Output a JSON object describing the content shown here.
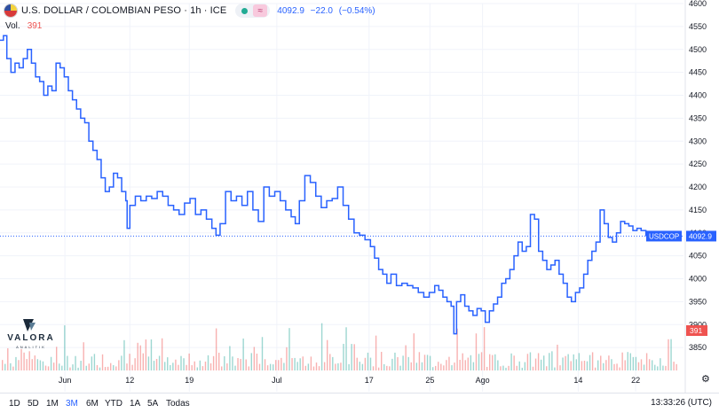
{
  "header": {
    "title": "U.S. DOLLAR / COLOMBIAN PESO · 1h · ICE",
    "last": "4092.9",
    "change": "−22.0",
    "change_pct": "(−0.54%)",
    "approx_symbol": "≈",
    "flag_icon": "colombia-flag-icon"
  },
  "volume": {
    "label": "Vol.",
    "value": "391"
  },
  "logo": {
    "word": "VALORA",
    "sub": "ANALITIK"
  },
  "price_tag": {
    "symbol": "USDCOP",
    "value": "4092.9"
  },
  "volume_tag": "391",
  "ranges": [
    {
      "label": "1D",
      "active": false
    },
    {
      "label": "5D",
      "active": false
    },
    {
      "label": "1M",
      "active": false
    },
    {
      "label": "3M",
      "active": true
    },
    {
      "label": "6M",
      "active": false
    },
    {
      "label": "YTD",
      "active": false
    },
    {
      "label": "1A",
      "active": false
    },
    {
      "label": "5A",
      "active": false
    },
    {
      "label": "Todas",
      "active": false
    }
  ],
  "clock": "13:33:26 (UTC)",
  "colors": {
    "line": "#2962ff",
    "up": "#26a69a",
    "down": "#ef5350",
    "last_tag": "#2962ff"
  },
  "chart_data": {
    "type": "line",
    "title": "U.S. DOLLAR / COLOMBIAN PESO · 1h · ICE",
    "xlabel": "",
    "ylabel": "",
    "ylim": [
      3800,
      4600
    ],
    "y_ticks": [
      4600,
      4550,
      4500,
      4450,
      4400,
      4350,
      4300,
      4250,
      4200,
      4150,
      4100,
      4050,
      4000,
      3950,
      3900,
      3850
    ],
    "x_ticks": [
      {
        "label": "Jun",
        "t": 0.095
      },
      {
        "label": "12",
        "t": 0.19
      },
      {
        "label": "19",
        "t": 0.277
      },
      {
        "label": "Jul",
        "t": 0.405
      },
      {
        "label": "17",
        "t": 0.54
      },
      {
        "label": "25",
        "t": 0.629
      },
      {
        "label": "Ago",
        "t": 0.706
      },
      {
        "label": "14",
        "t": 0.846
      },
      {
        "label": "22",
        "t": 0.93
      }
    ],
    "last_price": 4092.9,
    "series": [
      {
        "points": [
          [
            0.0,
            4520
          ],
          [
            0.005,
            4530
          ],
          [
            0.01,
            4480
          ],
          [
            0.016,
            4450
          ],
          [
            0.022,
            4470
          ],
          [
            0.028,
            4460
          ],
          [
            0.034,
            4480
          ],
          [
            0.04,
            4500
          ],
          [
            0.046,
            4470
          ],
          [
            0.052,
            4440
          ],
          [
            0.058,
            4430
          ],
          [
            0.064,
            4400
          ],
          [
            0.07,
            4420
          ],
          [
            0.076,
            4410
          ],
          [
            0.082,
            4470
          ],
          [
            0.088,
            4460
          ],
          [
            0.094,
            4440
          ],
          [
            0.1,
            4410
          ],
          [
            0.106,
            4390
          ],
          [
            0.112,
            4370
          ],
          [
            0.118,
            4350
          ],
          [
            0.124,
            4340
          ],
          [
            0.13,
            4300
          ],
          [
            0.136,
            4280
          ],
          [
            0.142,
            4260
          ],
          [
            0.148,
            4220
          ],
          [
            0.154,
            4190
          ],
          [
            0.16,
            4200
          ],
          [
            0.166,
            4230
          ],
          [
            0.172,
            4220
          ],
          [
            0.178,
            4190
          ],
          [
            0.184,
            4170
          ],
          [
            0.186,
            4110
          ],
          [
            0.19,
            4160
          ],
          [
            0.198,
            4180
          ],
          [
            0.206,
            4170
          ],
          [
            0.214,
            4180
          ],
          [
            0.222,
            4175
          ],
          [
            0.23,
            4190
          ],
          [
            0.238,
            4180
          ],
          [
            0.246,
            4160
          ],
          [
            0.254,
            4150
          ],
          [
            0.262,
            4140
          ],
          [
            0.27,
            4165
          ],
          [
            0.278,
            4175
          ],
          [
            0.286,
            4140
          ],
          [
            0.294,
            4150
          ],
          [
            0.302,
            4130
          ],
          [
            0.31,
            4110
          ],
          [
            0.316,
            4095
          ],
          [
            0.322,
            4120
          ],
          [
            0.33,
            4190
          ],
          [
            0.338,
            4170
          ],
          [
            0.346,
            4180
          ],
          [
            0.354,
            4160
          ],
          [
            0.362,
            4190
          ],
          [
            0.37,
            4150
          ],
          [
            0.378,
            4125
          ],
          [
            0.386,
            4200
          ],
          [
            0.394,
            4180
          ],
          [
            0.402,
            4190
          ],
          [
            0.41,
            4170
          ],
          [
            0.418,
            4150
          ],
          [
            0.426,
            4135
          ],
          [
            0.432,
            4120
          ],
          [
            0.438,
            4170
          ],
          [
            0.446,
            4225
          ],
          [
            0.454,
            4210
          ],
          [
            0.462,
            4180
          ],
          [
            0.47,
            4155
          ],
          [
            0.478,
            4170
          ],
          [
            0.486,
            4175
          ],
          [
            0.494,
            4200
          ],
          [
            0.502,
            4160
          ],
          [
            0.51,
            4130
          ],
          [
            0.518,
            4100
          ],
          [
            0.526,
            4095
          ],
          [
            0.534,
            4085
          ],
          [
            0.542,
            4070
          ],
          [
            0.548,
            4045
          ],
          [
            0.554,
            4020
          ],
          [
            0.56,
            4010
          ],
          [
            0.566,
            3990
          ],
          [
            0.572,
            4010
          ],
          [
            0.58,
            3985
          ],
          [
            0.588,
            3990
          ],
          [
            0.596,
            3985
          ],
          [
            0.604,
            3980
          ],
          [
            0.612,
            3970
          ],
          [
            0.62,
            3960
          ],
          [
            0.628,
            3970
          ],
          [
            0.636,
            3985
          ],
          [
            0.642,
            3975
          ],
          [
            0.648,
            3960
          ],
          [
            0.654,
            3950
          ],
          [
            0.66,
            3940
          ],
          [
            0.664,
            3880
          ],
          [
            0.668,
            3950
          ],
          [
            0.674,
            3965
          ],
          [
            0.68,
            3940
          ],
          [
            0.686,
            3930
          ],
          [
            0.692,
            3920
          ],
          [
            0.698,
            3935
          ],
          [
            0.704,
            3930
          ],
          [
            0.71,
            3905
          ],
          [
            0.716,
            3930
          ],
          [
            0.722,
            3945
          ],
          [
            0.728,
            3960
          ],
          [
            0.734,
            3990
          ],
          [
            0.74,
            4000
          ],
          [
            0.746,
            4020
          ],
          [
            0.752,
            4050
          ],
          [
            0.758,
            4080
          ],
          [
            0.764,
            4060
          ],
          [
            0.77,
            4070
          ],
          [
            0.776,
            4140
          ],
          [
            0.782,
            4130
          ],
          [
            0.788,
            4060
          ],
          [
            0.794,
            4040
          ],
          [
            0.8,
            4020
          ],
          [
            0.806,
            4030
          ],
          [
            0.812,
            4040
          ],
          [
            0.818,
            4010
          ],
          [
            0.824,
            3990
          ],
          [
            0.83,
            3960
          ],
          [
            0.836,
            3950
          ],
          [
            0.842,
            3970
          ],
          [
            0.848,
            3980
          ],
          [
            0.854,
            4010
          ],
          [
            0.86,
            4040
          ],
          [
            0.866,
            4060
          ],
          [
            0.872,
            4080
          ],
          [
            0.878,
            4150
          ],
          [
            0.884,
            4120
          ],
          [
            0.89,
            4090
          ],
          [
            0.896,
            4080
          ],
          [
            0.902,
            4100
          ],
          [
            0.908,
            4125
          ],
          [
            0.914,
            4120
          ],
          [
            0.92,
            4115
          ],
          [
            0.926,
            4105
          ],
          [
            0.932,
            4110
          ],
          [
            0.938,
            4105
          ],
          [
            0.945,
            4092.9
          ]
        ]
      }
    ]
  }
}
